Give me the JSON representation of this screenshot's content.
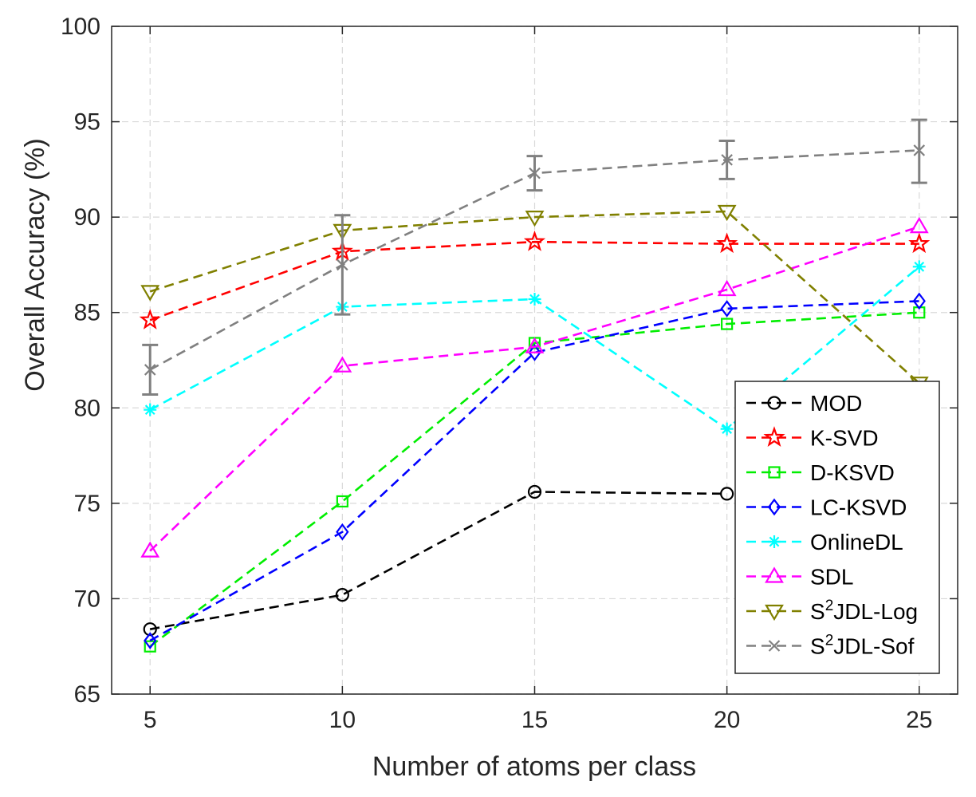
{
  "chart_data": {
    "type": "line",
    "title": "",
    "xlabel": "Number of atoms per class",
    "ylabel": "Overall Accuracy (%)",
    "x": [
      5,
      10,
      15,
      20,
      25
    ],
    "xlim": [
      4,
      26
    ],
    "ylim": [
      65,
      100
    ],
    "xticks": [
      "5",
      "10",
      "15",
      "20",
      "25"
    ],
    "yticks": [
      "65",
      "70",
      "75",
      "80",
      "85",
      "90",
      "95",
      "100"
    ],
    "grid": true,
    "legend_position": "bottom-right",
    "series": [
      {
        "name": "MOD",
        "values": [
          68.4,
          70.2,
          75.6,
          75.5,
          null
        ],
        "color": "#000000",
        "marker": "circle"
      },
      {
        "name": "K-SVD",
        "values": [
          84.6,
          88.2,
          88.7,
          88.6,
          88.6
        ],
        "color": "#ff0000",
        "marker": "star"
      },
      {
        "name": "D-KSVD",
        "values": [
          67.5,
          75.1,
          83.4,
          84.4,
          85.0
        ],
        "color": "#00ee00",
        "marker": "square"
      },
      {
        "name": "LC-KSVD",
        "values": [
          67.8,
          73.5,
          82.9,
          85.2,
          85.6
        ],
        "color": "#0000ff",
        "marker": "diamond"
      },
      {
        "name": "OnlineDL",
        "values": [
          79.9,
          85.3,
          85.7,
          78.9,
          87.4
        ],
        "color": "#00ffff",
        "marker": "asterisk"
      },
      {
        "name": "SDL",
        "values": [
          72.5,
          82.2,
          83.2,
          86.2,
          89.5
        ],
        "color": "#ff00ff",
        "marker": "triangle-up"
      },
      {
        "name": "S2JDL-Log",
        "label_base": "S",
        "label_sup": "2",
        "label_rest": "JDL-Log",
        "values": [
          86.1,
          89.3,
          90.0,
          90.3,
          81.3
        ],
        "color": "#808000",
        "marker": "triangle-down"
      },
      {
        "name": "S2JDL-Sof",
        "label_base": "S",
        "label_sup": "2",
        "label_rest": "JDL-Sof",
        "values": [
          82.0,
          87.5,
          92.3,
          93.0,
          93.5
        ],
        "color": "#808080",
        "marker": "x",
        "errors": [
          [
            80.7,
            83.3
          ],
          [
            84.9,
            90.1
          ],
          [
            91.4,
            93.2
          ],
          [
            92.0,
            94.0
          ],
          [
            91.8,
            95.1
          ]
        ]
      }
    ]
  }
}
